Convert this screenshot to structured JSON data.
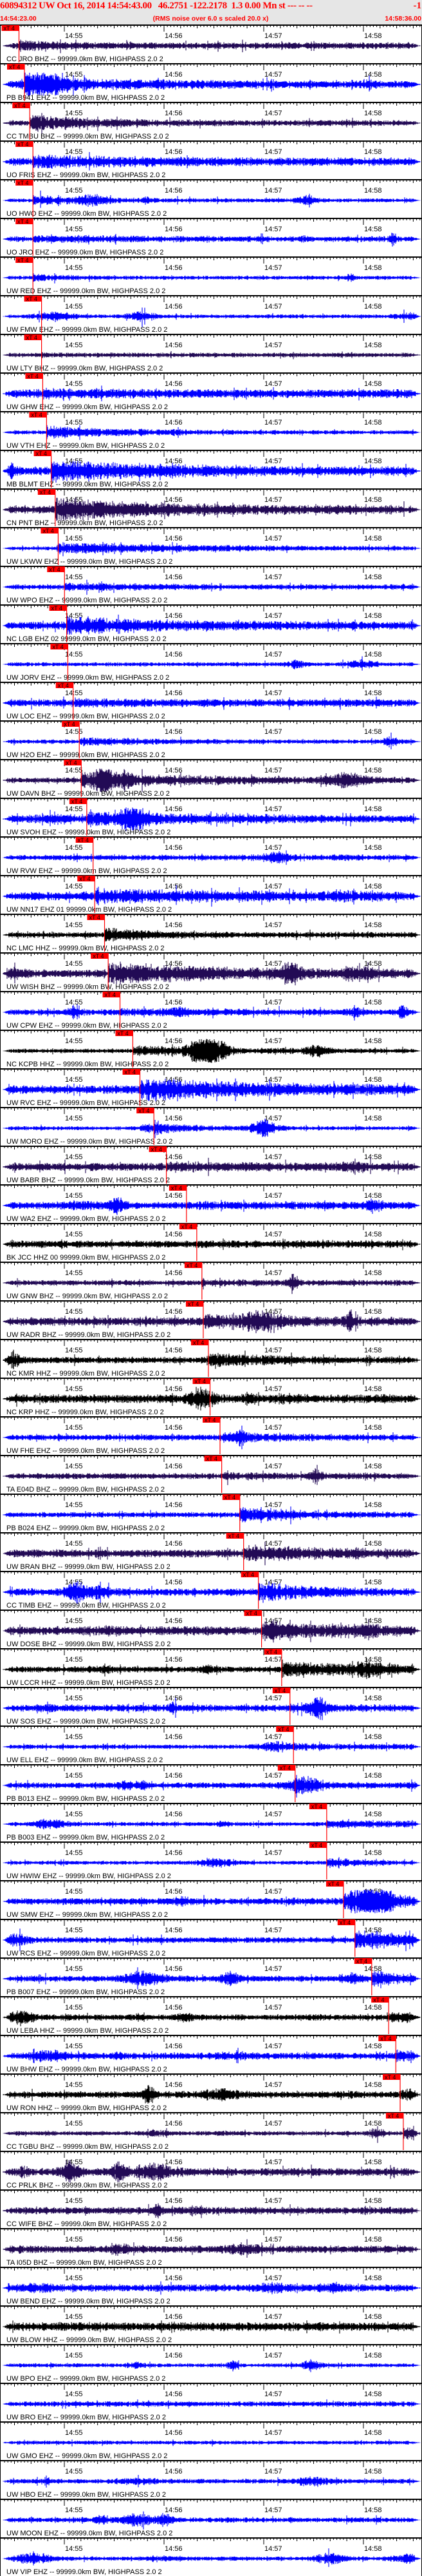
{
  "header": {
    "event_line": "60894312 UW Oct 16, 2014 14:54:43.00   46.2751 -122.2178  1.3 0.00 Mn st --- -- --",
    "event_end": "-1",
    "start_time": "14:54:23.00",
    "noise_note": "(RMS noise over 6.0 s scaled 20.0 x)",
    "end_time": "14:58:36.00"
  },
  "chart_data": {
    "type": "line",
    "title": "",
    "x_range": [
      "14:54:23.00",
      "14:58:36.00"
    ],
    "tick_labels": [
      "14:55",
      "14:56",
      "14:57",
      "14:58"
    ],
    "pick_label": "xT 4",
    "channel_colors": {
      "EHZ": "#0000ff",
      "BHZ": "#220a55",
      "HHZ": "#000000"
    },
    "pick_color": "#ff0000",
    "traces": [
      {
        "label": "CC JRO BHZ -- 99999.0km BW, HIGHPASS 2.0 2",
        "channel": "BHZ",
        "pick": "14:54:32.7"
      },
      {
        "label": "PB B941 EHZ -- 99999.0km BW, HIGHPASS 2.0 2",
        "channel": "EHZ",
        "pick": "14:54:36.0"
      },
      {
        "label": "CC TMBU BHZ -- 99999.0km BW, HIGHPASS 2.0 2",
        "channel": "BHZ",
        "pick": "14:54:39.2"
      },
      {
        "label": "UO FRIS EHZ -- 99999.0km BW, HIGHPASS 2.0 2",
        "channel": "EHZ",
        "pick": "14:54:41.1"
      },
      {
        "label": "UO HWO EHZ -- 99999.0km BW, HIGHPASS 2.0 2",
        "channel": "EHZ",
        "pick": "14:54:41.1"
      },
      {
        "label": "UO JRO EHZ -- 99999.0km BW, HIGHPASS 2.0 2",
        "channel": "EHZ",
        "pick": "14:54:41.1"
      },
      {
        "label": "UW RED EHZ -- 99999.0km BW, HIGHPASS 2.0 2",
        "channel": "EHZ",
        "pick": "14:54:41.1"
      },
      {
        "label": "UW FMW EHZ -- 99999.0km BW, HIGHPASS 2.0 2",
        "channel": "EHZ",
        "pick": "14:54:46.3"
      },
      {
        "label": "UW LTY BHZ -- 99999.0km BW, HIGHPASS 2.0 2",
        "channel": "BHZ",
        "pick": "14:54:46.3"
      },
      {
        "label": "UW GHW EHZ -- 99999.0km BW, HIGHPASS 2.0 2",
        "channel": "EHZ",
        "pick": "14:54:47.0"
      },
      {
        "label": "UW VTH EHZ -- 99999.0km BW, HIGHPASS 2.0 2",
        "channel": "EHZ",
        "pick": "14:54:49.3"
      },
      {
        "label": "MB BLMT EHZ -- 99999.0km BW, HIGHPASS 2.0 2",
        "channel": "EHZ",
        "pick": "14:54:52.1"
      },
      {
        "label": "CN PNT BHZ -- 99999.0km BW, HIGHPASS 2.0 2",
        "channel": "BHZ",
        "pick": "14:54:54.5"
      },
      {
        "label": "UW LKWW EHZ -- 99999.0km BW, HIGHPASS 2.0 2",
        "channel": "EHZ",
        "pick": "14:54:56.3"
      },
      {
        "label": "UW WPO EHZ -- 99999.0km BW, HIGHPASS 2.0 2",
        "channel": "EHZ",
        "pick": "14:55:00.1"
      },
      {
        "label": "NC LGB EHZ 02 99999.0km BW, HIGHPASS 2.0 2",
        "channel": "EHZ",
        "pick": "14:55:01.4"
      },
      {
        "label": "UW JORV EHZ -- 99999.0km BW, HIGHPASS 2.0 2",
        "channel": "EHZ",
        "pick": "14:55:02.1"
      },
      {
        "label": "UW LOC EHZ -- 99999.0km BW, HIGHPASS 2.0 2",
        "channel": "EHZ",
        "pick": "14:55:05.3"
      },
      {
        "label": "UW H2O EHZ -- 99999.0km BW, HIGHPASS 2.0 2",
        "channel": "EHZ",
        "pick": "14:55:09.0"
      },
      {
        "label": "UW DAVN BHZ -- 99999.0km BW, HIGHPASS 2.0 2",
        "channel": "BHZ",
        "pick": "14:55:10.2"
      },
      {
        "label": "UW SVOH EHZ -- 99999.0km BW, HIGHPASS 2.0 2",
        "channel": "EHZ",
        "pick": "14:55:13.5"
      },
      {
        "label": "UW RVW EHZ -- 99999.0km BW, HIGHPASS 2.0 2",
        "channel": "EHZ",
        "pick": "14:55:17.3"
      },
      {
        "label": "UW NN17 EHZ 01 99999.0km BW, HIGHPASS 2.0 2",
        "channel": "EHZ",
        "pick": "14:55:18.3"
      },
      {
        "label": "NC LMC HHZ -- 99999.0km BW, HIGHPASS 2.0 2",
        "channel": "HHZ",
        "pick": "14:55:24.2"
      },
      {
        "label": "UW WISH BHZ -- 99999.0km BW, HIGHPASS 2.0 2",
        "channel": "BHZ",
        "pick": "14:55:26.4"
      },
      {
        "label": "UW CPW EHZ -- 99999.0km BW, HIGHPASS 2.0 2",
        "channel": "EHZ",
        "pick": "14:55:33.5"
      },
      {
        "label": "NC KCPB HHZ -- 99999.0km BW, HIGHPASS 2.0 2",
        "channel": "HHZ",
        "pick": "14:55:41.2"
      },
      {
        "label": "UW RVC EHZ -- 99999.0km BW, HIGHPASS 2.0 2",
        "channel": "EHZ",
        "pick": "14:55:45.5"
      },
      {
        "label": "UW MORO EHZ -- 99999.0km BW, HIGHPASS 2.0 2",
        "channel": "EHZ",
        "pick": "14:55:53.9"
      },
      {
        "label": "UW BABR BHZ -- 99999.0km BW, HIGHPASS 2.0 2",
        "channel": "BHZ",
        "pick": "14:56:01.4"
      },
      {
        "label": "UW WA2 EHZ -- 99999.0km BW, HIGHPASS 2.0 2",
        "channel": "EHZ",
        "pick": "14:56:13.5"
      },
      {
        "label": "BK JCC HHZ 00 99999.0km BW, HIGHPASS 2.0 2",
        "channel": "HHZ",
        "pick": "14:56:19.7"
      },
      {
        "label": "UW GNW BHZ -- 99999.0km BW, HIGHPASS 2.0 2",
        "channel": "BHZ",
        "pick": "14:56:22.8"
      },
      {
        "label": "UW RADR BHZ -- 99999.0km BW, HIGHPASS 2.0 2",
        "channel": "BHZ",
        "pick": "14:56:23.6"
      },
      {
        "label": "NC KMR HHZ -- 99999.0km BW, HIGHPASS 2.0 2",
        "channel": "HHZ",
        "pick": "14:56:26.7"
      },
      {
        "label": "NC KRP HHZ -- 99999.0km BW, HIGHPASS 2.0 2",
        "channel": "HHZ",
        "pick": "14:56:27.7"
      },
      {
        "label": "UW FHE EHZ -- 99999.0km BW, HIGHPASS 2.0 2",
        "channel": "EHZ",
        "pick": "14:56:33.7"
      },
      {
        "label": "TA E04D BHZ -- 99999.0km BW, HIGHPASS 2.0 2",
        "channel": "BHZ",
        "pick": "14:56:34.7"
      },
      {
        "label": "PB B024 EHZ -- 99999.0km BW, HIGHPASS 2.0 2",
        "channel": "EHZ",
        "pick": "14:56:45.6"
      },
      {
        "label": "UW BRAN BHZ -- 99999.0km BW, HIGHPASS 2.0 2",
        "channel": "BHZ",
        "pick": "14:56:47.9"
      },
      {
        "label": "CC TIMB EHZ -- 99999.0km BW, HIGHPASS 2.0 2",
        "channel": "EHZ",
        "pick": "14:56:56.8"
      },
      {
        "label": "UW DOSE BHZ -- 99999.0km BW, HIGHPASS 2.0 2",
        "channel": "BHZ",
        "pick": "14:56:58.7"
      },
      {
        "label": "UW LCCR HHZ -- 99999.0km BW, HIGHPASS 2.0 2",
        "channel": "HHZ",
        "pick": "14:57:10.8"
      },
      {
        "label": "UW SOS EHZ -- 99999.0km BW, HIGHPASS 2.0 2",
        "channel": "EHZ",
        "pick": "14:57:15.8"
      },
      {
        "label": "UW ELL EHZ -- 99999.0km BW, HIGHPASS 2.0 2",
        "channel": "EHZ",
        "pick": "14:57:17.9"
      },
      {
        "label": "PB B013 EHZ -- 99999.0km BW, HIGHPASS 2.0 2",
        "channel": "EHZ",
        "pick": "14:57:18.9"
      },
      {
        "label": "PB B003 EHZ -- 99999.0km BW, HIGHPASS 2.0 2",
        "channel": "EHZ",
        "pick": "14:57:37.9"
      },
      {
        "label": "UW HWIW EHZ -- 99999.0km BW, HIGHPASS 2.0 2",
        "channel": "EHZ",
        "pick": "14:57:37.9"
      },
      {
        "label": "UW SMW EHZ -- 99999.0km BW, HIGHPASS 2.0 2",
        "channel": "EHZ",
        "pick": "14:57:48.0"
      },
      {
        "label": "UW RCS EHZ -- 99999.0km BW, HIGHPASS 2.0 2",
        "channel": "EHZ",
        "pick": "14:57:54.9"
      },
      {
        "label": "PB B007 EHZ -- 99999.0km BW, HIGHPASS 2.0 2",
        "channel": "EHZ",
        "pick": "14:58:05.0"
      },
      {
        "label": "UW LEBA HHZ -- 99999.0km BW, HIGHPASS 2.0 2",
        "channel": "HHZ",
        "pick": "14:58:15.2"
      },
      {
        "label": "UW BHW EHZ -- 99999.0km BW, HIGHPASS 2.0 2",
        "channel": "EHZ",
        "pick": "14:58:19.5"
      },
      {
        "label": "UW RON HHZ -- 99999.0km BW, HIGHPASS 2.0 2",
        "channel": "HHZ",
        "pick": "14:58:22.1"
      },
      {
        "label": "CC TGBU BHZ -- 99999.0km BW, HIGHPASS 2.0 2",
        "channel": "BHZ",
        "pick": "14:58:24.0"
      },
      {
        "label": "CC PRLK BHZ -- 99999.0km BW, HIGHPASS 2.0 2",
        "channel": "BHZ",
        "pick": null
      },
      {
        "label": "CC WIFE BHZ -- 99999.0km BW, HIGHPASS 2.0 2",
        "channel": "BHZ",
        "pick": null
      },
      {
        "label": "TA I05D BHZ -- 99999.0km BW, HIGHPASS 2.0 2",
        "channel": "BHZ",
        "pick": null
      },
      {
        "label": "UW BEND EHZ -- 99999.0km BW, HIGHPASS 2.0 2",
        "channel": "EHZ",
        "pick": null
      },
      {
        "label": "UW BLOW HHZ -- 99999.0km BW, HIGHPASS 2.0 2",
        "channel": "HHZ",
        "pick": null
      },
      {
        "label": "UW BPO EHZ -- 99999.0km BW, HIGHPASS 2.0 2",
        "channel": "EHZ",
        "pick": null
      },
      {
        "label": "UW BRO EHZ -- 99999.0km BW, HIGHPASS 2.0 2",
        "channel": "EHZ",
        "pick": null
      },
      {
        "label": "UW GMO EHZ -- 99999.0km BW, HIGHPASS 2.0 2",
        "channel": "EHZ",
        "pick": null
      },
      {
        "label": "UW HBO EHZ -- 99999.0km BW, HIGHPASS 2.0 2",
        "channel": "EHZ",
        "pick": null
      },
      {
        "label": "UW MOON EHZ -- 99999.0km BW, HIGHPASS 2.0 2",
        "channel": "EHZ",
        "pick": null
      },
      {
        "label": "UW VIP EHZ -- 99999.0km BW, HIGHPASS 2.0 2",
        "channel": "EHZ",
        "pick": null
      }
    ]
  }
}
